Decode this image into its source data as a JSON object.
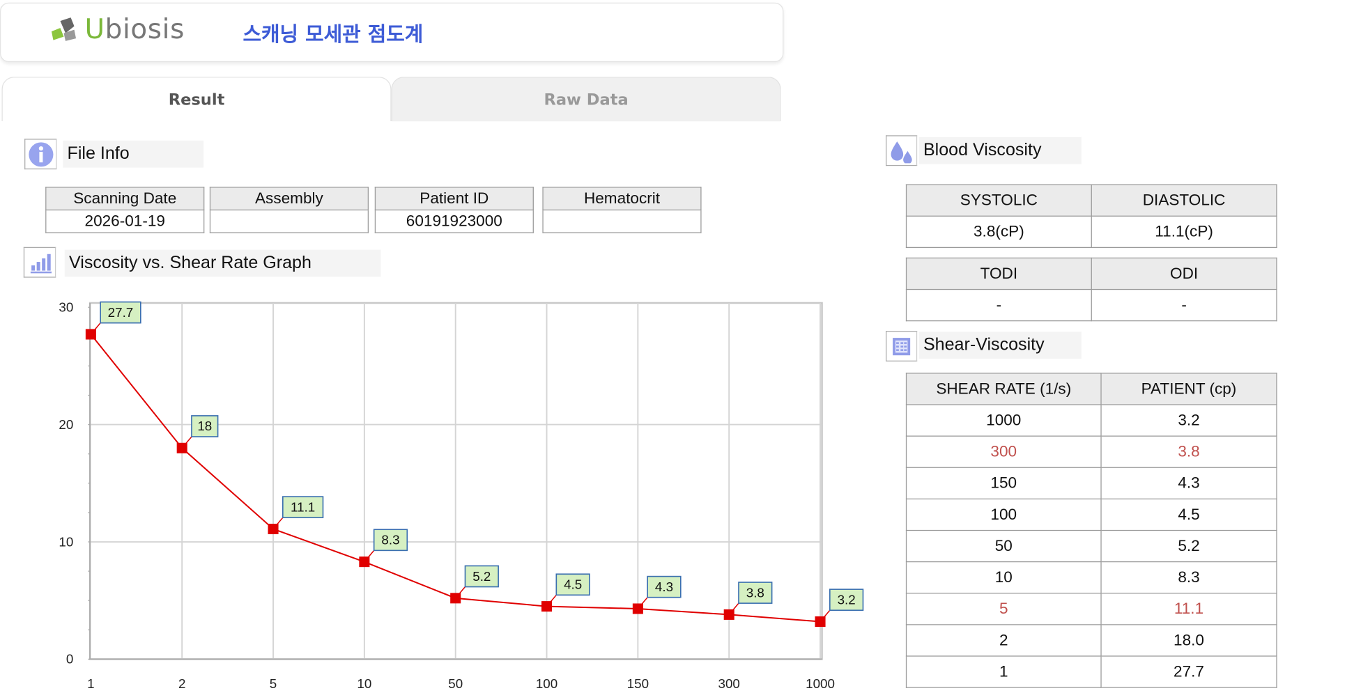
{
  "header": {
    "logo_text": "Ubiosis",
    "app_title": "스캐닝 모세관 점도계"
  },
  "tabs": [
    {
      "label": "Result",
      "active": true
    },
    {
      "label": "Raw Data",
      "active": false
    }
  ],
  "file_info": {
    "title": "File Info",
    "icon": "info-icon",
    "fields": [
      {
        "label": "Scanning Date",
        "value": "2026-01-19"
      },
      {
        "label": "Assembly",
        "value": ""
      },
      {
        "label": "Patient ID",
        "value": "60191923000"
      },
      {
        "label": "Hematocrit",
        "value": ""
      }
    ]
  },
  "graph": {
    "title": "Viscosity vs. Shear Rate Graph",
    "icon": "bar-chart-icon"
  },
  "chart_data": {
    "type": "line",
    "title": "",
    "xlabel": "",
    "ylabel": "",
    "x_scale": "categorical",
    "categories": [
      "1",
      "2",
      "5",
      "10",
      "50",
      "100",
      "150",
      "300",
      "1000"
    ],
    "values": [
      27.7,
      18,
      11.1,
      8.3,
      5.2,
      4.5,
      4.3,
      3.8,
      3.2
    ],
    "data_labels": [
      "27.7",
      "18",
      "11.1",
      "8.3",
      "5.2",
      "4.5",
      "4.3",
      "3.8",
      "3.2"
    ],
    "ylim": [
      0,
      30
    ],
    "yticks": [
      "0",
      "10",
      "20",
      "30"
    ],
    "grid": true,
    "line_color": "#e00000",
    "marker": "square",
    "label_fill": "#d6f0c2",
    "label_border": "#3a6fb0"
  },
  "blood_viscosity": {
    "title": "Blood Viscosity",
    "icon": "droplets-icon",
    "headers": [
      "SYSTOLIC",
      "DIASTOLIC"
    ],
    "values": [
      "3.8(cP)",
      "11.1(cP)"
    ],
    "headers2": [
      "TODI",
      "ODI"
    ],
    "values2": [
      "-",
      "-"
    ]
  },
  "shear_viscosity": {
    "title": "Shear-Viscosity",
    "icon": "calculator-icon",
    "headers": [
      "SHEAR RATE (1/s)",
      "PATIENT (cp)"
    ],
    "highlight_color": "#c0504d",
    "rows": [
      {
        "rate": "1000",
        "patient": "3.2",
        "highlight": false
      },
      {
        "rate": "300",
        "patient": "3.8",
        "highlight": true
      },
      {
        "rate": "150",
        "patient": "4.3",
        "highlight": false
      },
      {
        "rate": "100",
        "patient": "4.5",
        "highlight": false
      },
      {
        "rate": "50",
        "patient": "5.2",
        "highlight": false
      },
      {
        "rate": "10",
        "patient": "8.3",
        "highlight": false
      },
      {
        "rate": "5",
        "patient": "11.1",
        "highlight": true
      },
      {
        "rate": "2",
        "patient": "18.0",
        "highlight": false
      },
      {
        "rate": "1",
        "patient": "27.7",
        "highlight": false
      }
    ]
  }
}
